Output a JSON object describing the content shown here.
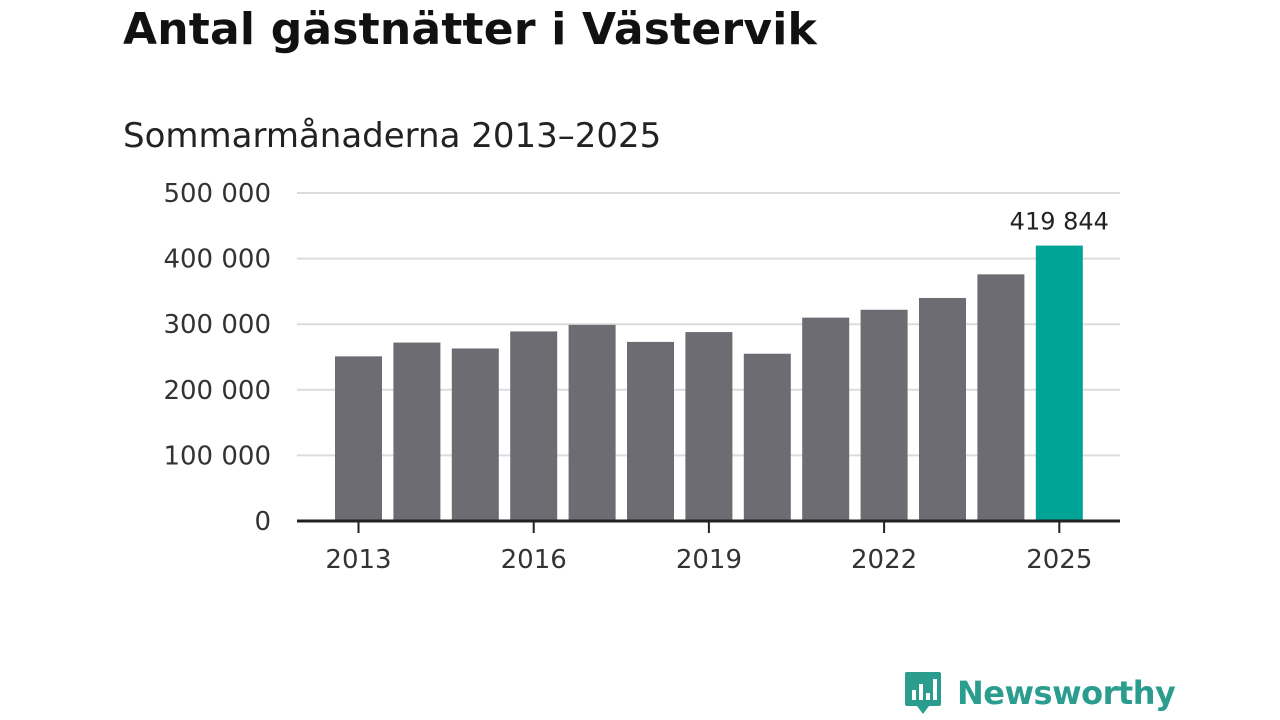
{
  "title": "Antal gästnätter i Västervik",
  "subtitle": "Sommarmånaderna 2013–2025",
  "brand": {
    "name": "Newsworthy",
    "icon": "newsworthy-bar-chart-icon",
    "color": "#2a9d8f"
  },
  "colors": {
    "bar": "#6d6c72",
    "highlight": "#00a497",
    "grid": "#dcdcdc",
    "axis": "#222222"
  },
  "chart_data": {
    "type": "bar",
    "title": "Antal gästnätter i Västervik",
    "subtitle": "Sommarmånaderna 2013–2025",
    "xlabel": "",
    "ylabel": "",
    "categories": [
      "2013",
      "2014",
      "2015",
      "2016",
      "2017",
      "2018",
      "2019",
      "2020",
      "2021",
      "2022",
      "2023",
      "2024",
      "2025"
    ],
    "values": [
      251000,
      272000,
      263000,
      289000,
      299000,
      273000,
      288000,
      255000,
      310000,
      322000,
      340000,
      376000,
      419844
    ],
    "highlight_index": 12,
    "data_labels": [
      {
        "index": 12,
        "text": "419 844"
      }
    ],
    "ylim": [
      0,
      500000
    ],
    "yticks": [
      0,
      100000,
      200000,
      300000,
      400000,
      500000
    ],
    "ytick_labels": [
      "0",
      "100 000",
      "200 000",
      "300 000",
      "400 000",
      "500 000"
    ],
    "xtick_labels": [
      "2013",
      "2016",
      "2019",
      "2022",
      "2025"
    ],
    "grid": true,
    "legend": "none"
  }
}
